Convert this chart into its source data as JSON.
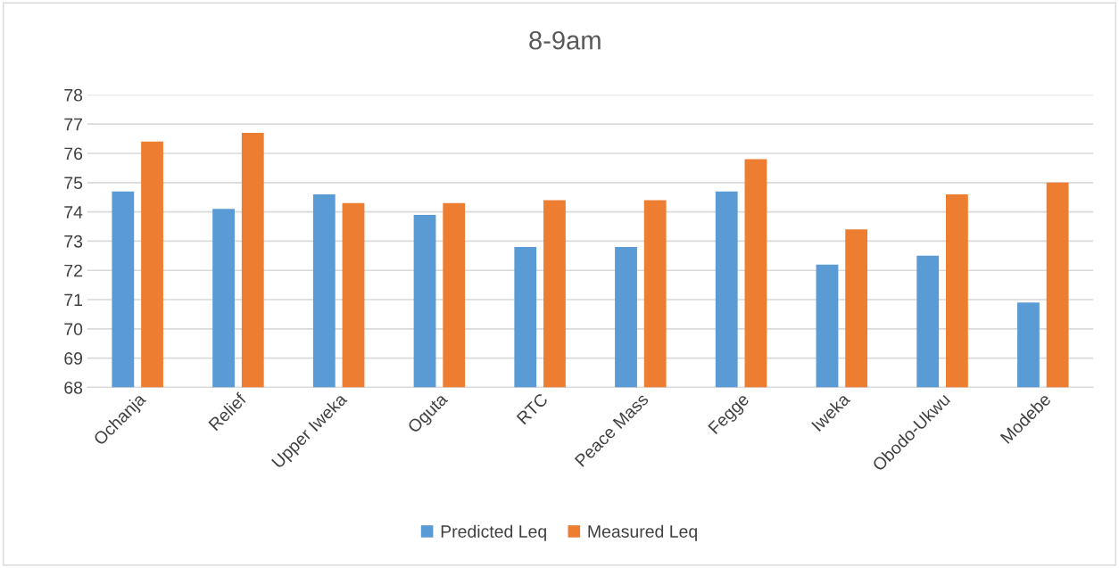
{
  "chart_data": {
    "type": "bar",
    "title": "8-9am",
    "categories": [
      "Ochanja",
      "Relief",
      "Upper Iweka",
      "Oguta",
      "RTC",
      "Peace Mass",
      "Fegge",
      "Iweka",
      "Obodo-Ukwu",
      "Modebe"
    ],
    "series": [
      {
        "name": "Predicted Leq",
        "color": "#5b9bd5",
        "values": [
          74.7,
          74.1,
          74.6,
          73.9,
          72.8,
          72.8,
          74.7,
          72.2,
          72.5,
          70.9
        ]
      },
      {
        "name": "Measured Leq",
        "color": "#ed7d31",
        "values": [
          76.4,
          76.7,
          74.3,
          74.3,
          74.4,
          74.4,
          75.8,
          73.4,
          74.6,
          75.0
        ]
      }
    ],
    "ylim": [
      68,
      78
    ],
    "yticks": [
      68,
      69,
      70,
      71,
      72,
      73,
      74,
      75,
      76,
      77,
      78
    ],
    "grid": "y",
    "legend": "bottom"
  }
}
